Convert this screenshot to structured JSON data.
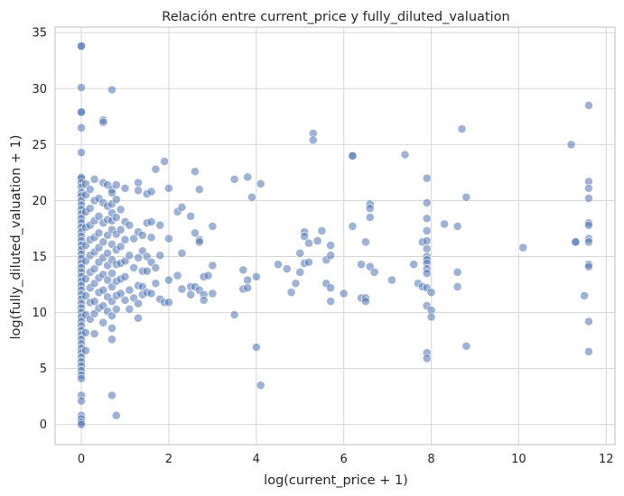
{
  "chart_data": {
    "type": "scatter",
    "title": "Relación entre current_price y fully_diluted_valuation",
    "xlabel": "log(current_price + 1)",
    "ylabel": "log(fully_diluted_valuation + 1)",
    "xlim": [
      -0.6,
      12.2
    ],
    "ylim": [
      -1.8,
      35.5
    ],
    "xticks": [
      0,
      2,
      4,
      6,
      8,
      10,
      12
    ],
    "yticks": [
      0,
      5,
      10,
      15,
      20,
      25,
      30,
      35
    ],
    "grid": true,
    "legend": "none",
    "colors": {
      "point": "#4c72b0",
      "point_edge": "#ffffff",
      "grid": "#d9d9d9",
      "spine": "#cccccc",
      "background": "#ffffff"
    },
    "points": [
      [
        0,
        33.8
      ],
      [
        0,
        33.8
      ],
      [
        0,
        30.1
      ],
      [
        0,
        27.9
      ],
      [
        0,
        27.9
      ],
      [
        0,
        26.5
      ],
      [
        0,
        24.3
      ],
      [
        0,
        22.1
      ],
      [
        0,
        22.0
      ],
      [
        0,
        21.6
      ],
      [
        0,
        21.2
      ],
      [
        0,
        20.7
      ],
      [
        0,
        20.4
      ],
      [
        0,
        20.0
      ],
      [
        0,
        19.6
      ],
      [
        0,
        19.2
      ],
      [
        0,
        18.8
      ],
      [
        0,
        18.4
      ],
      [
        0,
        18.0
      ],
      [
        0,
        17.6
      ],
      [
        0,
        17.2
      ],
      [
        0,
        16.8
      ],
      [
        0,
        16.4
      ],
      [
        0,
        16.0
      ],
      [
        0,
        15.6
      ],
      [
        0,
        15.2
      ],
      [
        0,
        14.8
      ],
      [
        0,
        14.4
      ],
      [
        0,
        14.0
      ],
      [
        0,
        13.6
      ],
      [
        0,
        13.2
      ],
      [
        0,
        12.8
      ],
      [
        0,
        12.4
      ],
      [
        0,
        12.0
      ],
      [
        0,
        11.6
      ],
      [
        0,
        11.2
      ],
      [
        0,
        10.8
      ],
      [
        0,
        10.4
      ],
      [
        0,
        10.0
      ],
      [
        0,
        9.6
      ],
      [
        0,
        9.2
      ],
      [
        0,
        8.8
      ],
      [
        0,
        8.4
      ],
      [
        0,
        8.0
      ],
      [
        0,
        7.6
      ],
      [
        0,
        7.2
      ],
      [
        0,
        6.8
      ],
      [
        0,
        6.4
      ],
      [
        0,
        6.0
      ],
      [
        0,
        5.6
      ],
      [
        0,
        5.2
      ],
      [
        0,
        4.8
      ],
      [
        0,
        4.4
      ],
      [
        0,
        4.1
      ],
      [
        0,
        2.6
      ],
      [
        0,
        2.1
      ],
      [
        0,
        0.8
      ],
      [
        0,
        0.5
      ],
      [
        0,
        0.2
      ],
      [
        0,
        0.0
      ],
      [
        0.1,
        21.5
      ],
      [
        0.1,
        20.5
      ],
      [
        0.1,
        19.0
      ],
      [
        0.1,
        17.6
      ],
      [
        0.1,
        16.0
      ],
      [
        0.1,
        14.6
      ],
      [
        0.1,
        13.0
      ],
      [
        0.1,
        11.5
      ],
      [
        0.1,
        9.8
      ],
      [
        0.1,
        8.2
      ],
      [
        0.1,
        6.6
      ],
      [
        0.2,
        21.0
      ],
      [
        0.2,
        19.3
      ],
      [
        0.2,
        17.8
      ],
      [
        0.2,
        16.5
      ],
      [
        0.2,
        15.1
      ],
      [
        0.2,
        13.6
      ],
      [
        0.2,
        12.2
      ],
      [
        0.2,
        10.9
      ],
      [
        0.2,
        9.4
      ],
      [
        0.3,
        21.9
      ],
      [
        0.3,
        20.0
      ],
      [
        0.3,
        18.2
      ],
      [
        0.3,
        16.7
      ],
      [
        0.3,
        15.4
      ],
      [
        0.3,
        13.9
      ],
      [
        0.3,
        12.6
      ],
      [
        0.3,
        11.0
      ],
      [
        0.3,
        9.9
      ],
      [
        0.3,
        8.1
      ],
      [
        0.4,
        20.2
      ],
      [
        0.4,
        18.6
      ],
      [
        0.4,
        17.1
      ],
      [
        0.4,
        15.8
      ],
      [
        0.4,
        14.5
      ],
      [
        0.4,
        13.1
      ],
      [
        0.4,
        11.8
      ],
      [
        0.4,
        10.4
      ],
      [
        0.5,
        27.2
      ],
      [
        0.5,
        27.0
      ],
      [
        0.5,
        21.6
      ],
      [
        0.5,
        19.8
      ],
      [
        0.5,
        18.0
      ],
      [
        0.5,
        16.3
      ],
      [
        0.5,
        14.9
      ],
      [
        0.5,
        13.4
      ],
      [
        0.5,
        12.0
      ],
      [
        0.5,
        10.6
      ],
      [
        0.5,
        9.1
      ],
      [
        0.6,
        21.4
      ],
      [
        0.6,
        19.5
      ],
      [
        0.6,
        18.3
      ],
      [
        0.6,
        16.9
      ],
      [
        0.6,
        15.3
      ],
      [
        0.6,
        14.2
      ],
      [
        0.6,
        12.9
      ],
      [
        0.6,
        11.4
      ],
      [
        0.6,
        10.1
      ],
      [
        0.7,
        29.9
      ],
      [
        0.7,
        21.0
      ],
      [
        0.7,
        20.7
      ],
      [
        0.7,
        19.7
      ],
      [
        0.7,
        18.9
      ],
      [
        0.7,
        18.2
      ],
      [
        0.7,
        17.4
      ],
      [
        0.7,
        16.1
      ],
      [
        0.7,
        14.7
      ],
      [
        0.7,
        13.5
      ],
      [
        0.7,
        12.3
      ],
      [
        0.7,
        11.0
      ],
      [
        0.7,
        9.7
      ],
      [
        0.7,
        8.6
      ],
      [
        0.7,
        7.6
      ],
      [
        0.7,
        2.6
      ],
      [
        0.8,
        21.4
      ],
      [
        0.8,
        20.1
      ],
      [
        0.8,
        18.5
      ],
      [
        0.8,
        17.0
      ],
      [
        0.8,
        15.6
      ],
      [
        0.8,
        14.3
      ],
      [
        0.8,
        12.8
      ],
      [
        0.8,
        11.5
      ],
      [
        0.8,
        10.3
      ],
      [
        0.8,
        0.8
      ],
      [
        0.9,
        19.2
      ],
      [
        0.9,
        17.4
      ],
      [
        0.9,
        15.9
      ],
      [
        0.9,
        14.4
      ],
      [
        0.9,
        13.0
      ],
      [
        0.9,
        11.7
      ],
      [
        1.0,
        21.1
      ],
      [
        1.0,
        18.1
      ],
      [
        1.0,
        16.5
      ],
      [
        1.0,
        14.6
      ],
      [
        1.0,
        13.2
      ],
      [
        1.0,
        11.1
      ],
      [
        1.1,
        17.8
      ],
      [
        1.1,
        15.1
      ],
      [
        1.1,
        12.0
      ],
      [
        1.1,
        10.3
      ],
      [
        1.2,
        16.6
      ],
      [
        1.2,
        14.0
      ],
      [
        1.2,
        11.3
      ],
      [
        1.3,
        21.6
      ],
      [
        1.3,
        20.9
      ],
      [
        1.3,
        17.2
      ],
      [
        1.3,
        14.9
      ],
      [
        1.3,
        12.4
      ],
      [
        1.3,
        10.8
      ],
      [
        1.3,
        9.5
      ],
      [
        1.4,
        16.9
      ],
      [
        1.4,
        15.5
      ],
      [
        1.4,
        13.7
      ],
      [
        1.4,
        12.3
      ],
      [
        1.4,
        11.6
      ],
      [
        1.5,
        20.6
      ],
      [
        1.5,
        18.0
      ],
      [
        1.5,
        15.0
      ],
      [
        1.5,
        13.7
      ],
      [
        1.5,
        11.8
      ],
      [
        1.6,
        20.8
      ],
      [
        1.6,
        18.1
      ],
      [
        1.6,
        16.7
      ],
      [
        1.6,
        14.5
      ],
      [
        1.6,
        11.7
      ],
      [
        1.7,
        22.8
      ],
      [
        1.7,
        14.0
      ],
      [
        1.7,
        12.6
      ],
      [
        1.8,
        17.8
      ],
      [
        1.8,
        15.1
      ],
      [
        1.8,
        11.2
      ],
      [
        1.9,
        23.5
      ],
      [
        1.9,
        10.9
      ],
      [
        2.0,
        21.1
      ],
      [
        2.0,
        16.6
      ],
      [
        2.0,
        12.9
      ],
      [
        2.0,
        10.9
      ],
      [
        2.2,
        19.0
      ],
      [
        2.2,
        13.3
      ],
      [
        2.3,
        19.4
      ],
      [
        2.3,
        15.3
      ],
      [
        2.3,
        12.1
      ],
      [
        2.5,
        18.6
      ],
      [
        2.5,
        12.3
      ],
      [
        2.5,
        11.6
      ],
      [
        2.6,
        22.6
      ],
      [
        2.6,
        17.1
      ],
      [
        2.6,
        12.3
      ],
      [
        2.7,
        21.0
      ],
      [
        2.7,
        16.5
      ],
      [
        2.7,
        16.3
      ],
      [
        2.7,
        12.0
      ],
      [
        2.8,
        13.2
      ],
      [
        2.8,
        11.6
      ],
      [
        2.8,
        11.1
      ],
      [
        2.9,
        13.3
      ],
      [
        3.0,
        17.7
      ],
      [
        3.0,
        14.2
      ],
      [
        3.0,
        11.7
      ],
      [
        3.5,
        21.9
      ],
      [
        3.5,
        9.8
      ],
      [
        3.7,
        13.8
      ],
      [
        3.7,
        12.1
      ],
      [
        3.8,
        22.1
      ],
      [
        3.8,
        12.9
      ],
      [
        3.8,
        12.2
      ],
      [
        3.9,
        20.3
      ],
      [
        4.0,
        13.2
      ],
      [
        4.0,
        6.9
      ],
      [
        4.1,
        21.5
      ],
      [
        4.1,
        3.5
      ],
      [
        4.5,
        14.3
      ],
      [
        4.7,
        13.9
      ],
      [
        4.8,
        11.8
      ],
      [
        4.9,
        12.6
      ],
      [
        5.0,
        15.3
      ],
      [
        5.0,
        13.6
      ],
      [
        5.1,
        17.2
      ],
      [
        5.1,
        16.8
      ],
      [
        5.1,
        14.4
      ],
      [
        5.2,
        16.2
      ],
      [
        5.2,
        14.5
      ],
      [
        5.3,
        26.0
      ],
      [
        5.3,
        25.4
      ],
      [
        5.4,
        16.4
      ],
      [
        5.5,
        17.3
      ],
      [
        5.6,
        14.7
      ],
      [
        5.6,
        12.6
      ],
      [
        5.7,
        16.0
      ],
      [
        5.7,
        15.1
      ],
      [
        5.7,
        12.2
      ],
      [
        5.7,
        11.0
      ],
      [
        6.0,
        11.7
      ],
      [
        6.2,
        24.0
      ],
      [
        6.2,
        24.0
      ],
      [
        6.2,
        17.7
      ],
      [
        6.4,
        14.3
      ],
      [
        6.4,
        11.3
      ],
      [
        6.5,
        16.3
      ],
      [
        6.5,
        11.3
      ],
      [
        6.5,
        11.0
      ],
      [
        6.6,
        19.7
      ],
      [
        6.6,
        19.3
      ],
      [
        6.6,
        18.5
      ],
      [
        6.6,
        14.1
      ],
      [
        6.7,
        13.6
      ],
      [
        7.1,
        12.9
      ],
      [
        7.4,
        24.1
      ],
      [
        7.6,
        14.3
      ],
      [
        7.7,
        12.6
      ],
      [
        7.8,
        16.3
      ],
      [
        7.8,
        12.3
      ],
      [
        7.9,
        22.0
      ],
      [
        7.9,
        19.8
      ],
      [
        7.9,
        18.4
      ],
      [
        7.9,
        17.3
      ],
      [
        7.9,
        16.4
      ],
      [
        7.9,
        15.7
      ],
      [
        7.9,
        15.0
      ],
      [
        7.9,
        14.7
      ],
      [
        7.9,
        14.4
      ],
      [
        7.9,
        13.9
      ],
      [
        7.9,
        13.5
      ],
      [
        7.9,
        12.2
      ],
      [
        7.9,
        10.6
      ],
      [
        7.9,
        6.4
      ],
      [
        7.9,
        5.9
      ],
      [
        8.0,
        11.8
      ],
      [
        8.0,
        10.2
      ],
      [
        8.0,
        9.6
      ],
      [
        8.3,
        17.9
      ],
      [
        8.6,
        17.7
      ],
      [
        8.6,
        13.6
      ],
      [
        8.6,
        12.3
      ],
      [
        8.7,
        26.4
      ],
      [
        8.8,
        20.3
      ],
      [
        8.8,
        7.0
      ],
      [
        10.1,
        15.8
      ],
      [
        11.2,
        25.0
      ],
      [
        11.3,
        16.3
      ],
      [
        11.3,
        16.3
      ],
      [
        11.5,
        11.5
      ],
      [
        11.6,
        28.5
      ],
      [
        11.6,
        21.7
      ],
      [
        11.6,
        21.1
      ],
      [
        11.6,
        20.2
      ],
      [
        11.6,
        18.0
      ],
      [
        11.6,
        17.8
      ],
      [
        11.6,
        16.6
      ],
      [
        11.6,
        16.3
      ],
      [
        11.6,
        14.3
      ],
      [
        11.6,
        14.1
      ],
      [
        11.6,
        9.2
      ],
      [
        11.6,
        6.5
      ]
    ]
  }
}
